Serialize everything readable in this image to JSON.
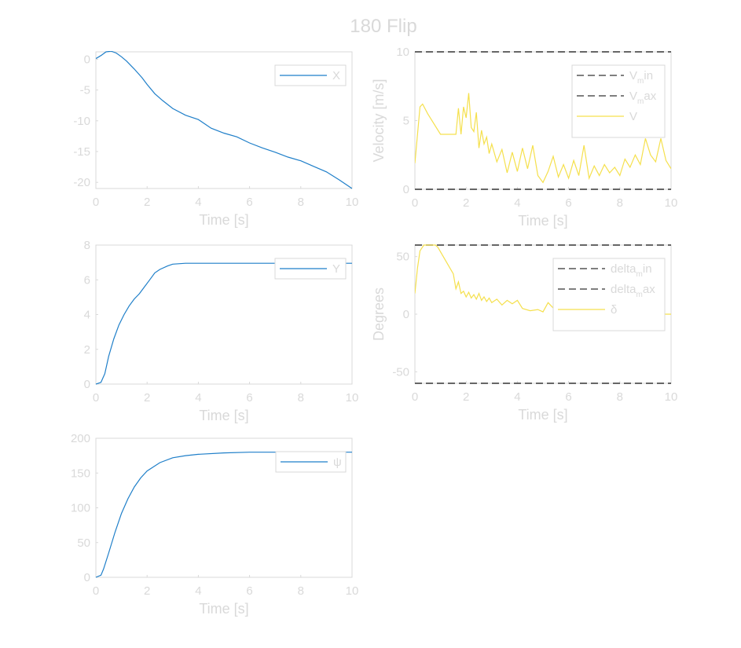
{
  "figure": {
    "title": "180 Flip"
  },
  "colors": {
    "axis_text": "#d9d9d9",
    "frame": "#d9d9d9",
    "blue_series": "#1f7fc9",
    "yellow_series": "#f5e04d",
    "bounds": "#333333"
  },
  "chart_data": [
    {
      "id": "x",
      "type": "line",
      "title": "",
      "xlabel": "Time [s]",
      "ylabel": "",
      "xlim": [
        0,
        10
      ],
      "ylim": [
        -21,
        1.2
      ],
      "xticks": [
        "0",
        "2",
        "4",
        "6",
        "8",
        "10"
      ],
      "yticks": [
        "0",
        "-5",
        "-10",
        "-15",
        "-20"
      ],
      "ytick_values": [
        0,
        -5,
        -10,
        -15,
        -20
      ],
      "grid": false,
      "legend": {
        "position": "top-right",
        "entries": [
          {
            "label": "X",
            "subscript": "",
            "suffix": ""
          }
        ]
      },
      "series": [
        {
          "name": "X",
          "color": "#1f7fc9",
          "style": "solid",
          "x": [
            0,
            0.2,
            0.4,
            0.6,
            0.8,
            1.0,
            1.2,
            1.5,
            1.8,
            2.0,
            2.3,
            2.6,
            3.0,
            3.5,
            4.0,
            4.5,
            5.0,
            5.5,
            6.0,
            6.5,
            7.0,
            7.5,
            8.0,
            8.5,
            9.0,
            9.5,
            10.0
          ],
          "y": [
            0.1,
            0.6,
            1.2,
            1.3,
            1.0,
            0.4,
            -0.3,
            -1.6,
            -3.0,
            -4.1,
            -5.6,
            -6.7,
            -8.0,
            -9.1,
            -9.8,
            -11.2,
            -12.0,
            -12.6,
            -13.6,
            -14.4,
            -15.1,
            -15.9,
            -16.5,
            -17.4,
            -18.3,
            -19.6,
            -21.0
          ]
        }
      ]
    },
    {
      "id": "velocity",
      "type": "line",
      "title": "",
      "xlabel": "Time [s]",
      "ylabel": "Velocity [m/s]",
      "xlim": [
        0,
        10
      ],
      "ylim": [
        0,
        10
      ],
      "xticks": [
        "0",
        "2",
        "4",
        "6",
        "8",
        "10"
      ],
      "yticks": [
        "0",
        "5",
        "10"
      ],
      "ytick_values": [
        0,
        5,
        10
      ],
      "grid": false,
      "legend": {
        "position": "top-right",
        "entries": [
          {
            "label": "V",
            "subscript": "m",
            "suffix": "in"
          },
          {
            "label": "V",
            "subscript": "m",
            "suffix": "ax"
          },
          {
            "label": "V",
            "subscript": "",
            "suffix": ""
          }
        ]
      },
      "series": [
        {
          "name": "V_min",
          "color": "#333333",
          "style": "dashed",
          "x": [
            0,
            10
          ],
          "y": [
            0,
            0
          ]
        },
        {
          "name": "V_max",
          "color": "#333333",
          "style": "dashed",
          "x": [
            0,
            10
          ],
          "y": [
            10,
            10
          ]
        },
        {
          "name": "V",
          "color": "#f5e04d",
          "style": "solid",
          "x": [
            0,
            0.2,
            0.3,
            0.5,
            1.0,
            1.6,
            1.7,
            1.8,
            1.9,
            2.0,
            2.1,
            2.2,
            2.3,
            2.4,
            2.5,
            2.6,
            2.7,
            2.8,
            2.9,
            3.0,
            3.2,
            3.4,
            3.6,
            3.8,
            4.0,
            4.2,
            4.4,
            4.6,
            4.8,
            5.0,
            5.2,
            5.4,
            5.6,
            5.8,
            6.0,
            6.2,
            6.4,
            6.6,
            6.8,
            7.0,
            7.2,
            7.4,
            7.6,
            7.8,
            8.0,
            8.2,
            8.4,
            8.6,
            8.8,
            9.0,
            9.2,
            9.4,
            9.6,
            9.8,
            10.0
          ],
          "y": [
            1.9,
            6.0,
            6.2,
            5.5,
            4.0,
            4.0,
            5.9,
            4.0,
            6.0,
            5.2,
            7.0,
            4.5,
            4.2,
            5.6,
            3.0,
            4.3,
            3.3,
            3.8,
            2.6,
            3.3,
            2.0,
            2.9,
            1.2,
            2.7,
            1.3,
            3.0,
            1.5,
            3.2,
            1.0,
            0.5,
            1.3,
            2.4,
            0.9,
            1.8,
            0.8,
            2.1,
            1.0,
            3.2,
            0.8,
            1.7,
            1.0,
            1.8,
            1.2,
            1.6,
            1.0,
            2.2,
            1.6,
            2.5,
            1.8,
            3.7,
            2.5,
            2.0,
            3.7,
            2.1,
            1.5
          ]
        }
      ]
    },
    {
      "id": "y",
      "type": "line",
      "title": "",
      "xlabel": "Time [s]",
      "ylabel": "",
      "xlim": [
        0,
        10
      ],
      "ylim": [
        0,
        8
      ],
      "xticks": [
        "0",
        "2",
        "4",
        "6",
        "8",
        "10"
      ],
      "yticks": [
        "0",
        "2",
        "4",
        "6",
        "8"
      ],
      "ytick_values": [
        0,
        2,
        4,
        6,
        8
      ],
      "grid": false,
      "legend": {
        "position": "top-right",
        "entries": [
          {
            "label": "Y",
            "subscript": "",
            "suffix": ""
          }
        ]
      },
      "series": [
        {
          "name": "Y",
          "color": "#1f7fc9",
          "style": "solid",
          "x": [
            0,
            0.2,
            0.35,
            0.5,
            0.7,
            0.9,
            1.1,
            1.3,
            1.5,
            1.7,
            1.9,
            2.1,
            2.3,
            2.5,
            2.8,
            3.0,
            3.5,
            4.0,
            5.0,
            6.0,
            8.0,
            10.0
          ],
          "y": [
            0,
            0.1,
            0.6,
            1.6,
            2.6,
            3.4,
            4.0,
            4.5,
            4.9,
            5.2,
            5.6,
            6.0,
            6.4,
            6.6,
            6.8,
            6.9,
            6.95,
            6.95,
            6.95,
            6.95,
            6.95,
            6.95
          ]
        }
      ]
    },
    {
      "id": "delta",
      "type": "line",
      "title": "",
      "xlabel": "Time [s]",
      "ylabel": "Degrees",
      "xlim": [
        0,
        10
      ],
      "ylim": [
        -60,
        60
      ],
      "xticks": [
        "0",
        "2",
        "4",
        "6",
        "8",
        "10"
      ],
      "yticks": [
        "50",
        "0",
        "-50"
      ],
      "ytick_values": [
        50,
        0,
        -50
      ],
      "grid": false,
      "legend": {
        "position": "top-right",
        "entries": [
          {
            "label": "delta",
            "subscript": "m",
            "suffix": "in"
          },
          {
            "label": "delta",
            "subscript": "m",
            "suffix": "ax"
          },
          {
            "label": "δ",
            "subscript": "",
            "suffix": ""
          }
        ]
      },
      "series": [
        {
          "name": "delta_min",
          "color": "#333333",
          "style": "dashed",
          "x": [
            0,
            10
          ],
          "y": [
            -60,
            -60
          ]
        },
        {
          "name": "delta_max",
          "color": "#333333",
          "style": "dashed",
          "x": [
            0,
            10
          ],
          "y": [
            60,
            60
          ]
        },
        {
          "name": "δ",
          "color": "#f5e04d",
          "style": "solid",
          "x": [
            0,
            0.1,
            0.2,
            0.35,
            0.5,
            0.8,
            0.9,
            1.5,
            1.6,
            1.7,
            1.8,
            1.9,
            2.0,
            2.1,
            2.2,
            2.3,
            2.4,
            2.5,
            2.6,
            2.7,
            2.8,
            2.9,
            3.0,
            3.2,
            3.4,
            3.6,
            3.8,
            4.0,
            4.2,
            4.5,
            4.8,
            5.0,
            5.2,
            5.5,
            5.8,
            6.0,
            6.5,
            7.0,
            8.0,
            10.0
          ],
          "y": [
            18,
            40,
            55,
            60,
            60,
            60,
            58,
            35,
            22,
            28,
            18,
            20,
            15,
            19,
            14,
            17,
            13,
            18,
            12,
            15,
            11,
            14,
            10,
            13,
            8,
            12,
            9,
            12,
            5,
            3,
            4,
            2,
            10,
            3,
            4,
            1,
            2,
            0,
            0,
            0
          ]
        }
      ]
    },
    {
      "id": "psi",
      "type": "line",
      "title": "",
      "xlabel": "Time [s]",
      "ylabel": "",
      "xlim": [
        0,
        10
      ],
      "ylim": [
        0,
        200
      ],
      "xticks": [
        "0",
        "2",
        "4",
        "6",
        "8",
        "10"
      ],
      "yticks": [
        "0",
        "50",
        "100",
        "150",
        "200"
      ],
      "ytick_values": [
        0,
        50,
        100,
        150,
        200
      ],
      "grid": false,
      "legend": {
        "position": "top-right",
        "entries": [
          {
            "label": "ψ",
            "subscript": "",
            "suffix": ""
          }
        ]
      },
      "series": [
        {
          "name": "ψ",
          "color": "#1f7fc9",
          "style": "solid",
          "x": [
            0,
            0.2,
            0.3,
            0.5,
            0.75,
            1.0,
            1.25,
            1.5,
            1.75,
            2.0,
            2.5,
            3.0,
            3.5,
            4.0,
            5.0,
            6.0,
            7.0,
            8.0,
            10.0
          ],
          "y": [
            0,
            3,
            12,
            35,
            65,
            92,
            113,
            130,
            143,
            153,
            165,
            172,
            175,
            177,
            179,
            180,
            180,
            180,
            180
          ]
        }
      ]
    }
  ]
}
